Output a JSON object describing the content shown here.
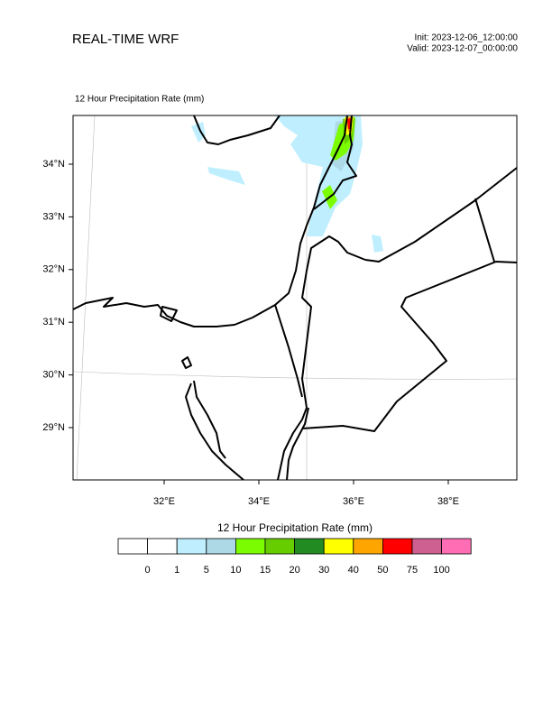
{
  "header": {
    "title": "REAL-TIME WRF",
    "init": "Init: 2023-12-06_12:00:00",
    "valid": "Valid: 2023-12-07_00:00:00"
  },
  "map": {
    "label": "12 Hour Precipitation Rate   (mm)",
    "lat_labels": [
      "34°N",
      "33°N",
      "32°N",
      "31°N",
      "30°N",
      "29°N"
    ],
    "lon_labels": [
      "32°E",
      "34°E",
      "36°E",
      "38°E"
    ]
  },
  "colorbar": {
    "title": "12 Hour Precipitation Rate  (mm)",
    "colors": [
      "#ffffff",
      "#ffffff",
      "#bfefff",
      "#add8e6",
      "#7cfc00",
      "#66cd00",
      "#228b22",
      "#ffff00",
      "#ffa500",
      "#ff0000",
      "#cd6090",
      "#ff6eb4"
    ],
    "levels": [
      0,
      1,
      5,
      10,
      15,
      20,
      30,
      40,
      50,
      75,
      100
    ]
  }
}
